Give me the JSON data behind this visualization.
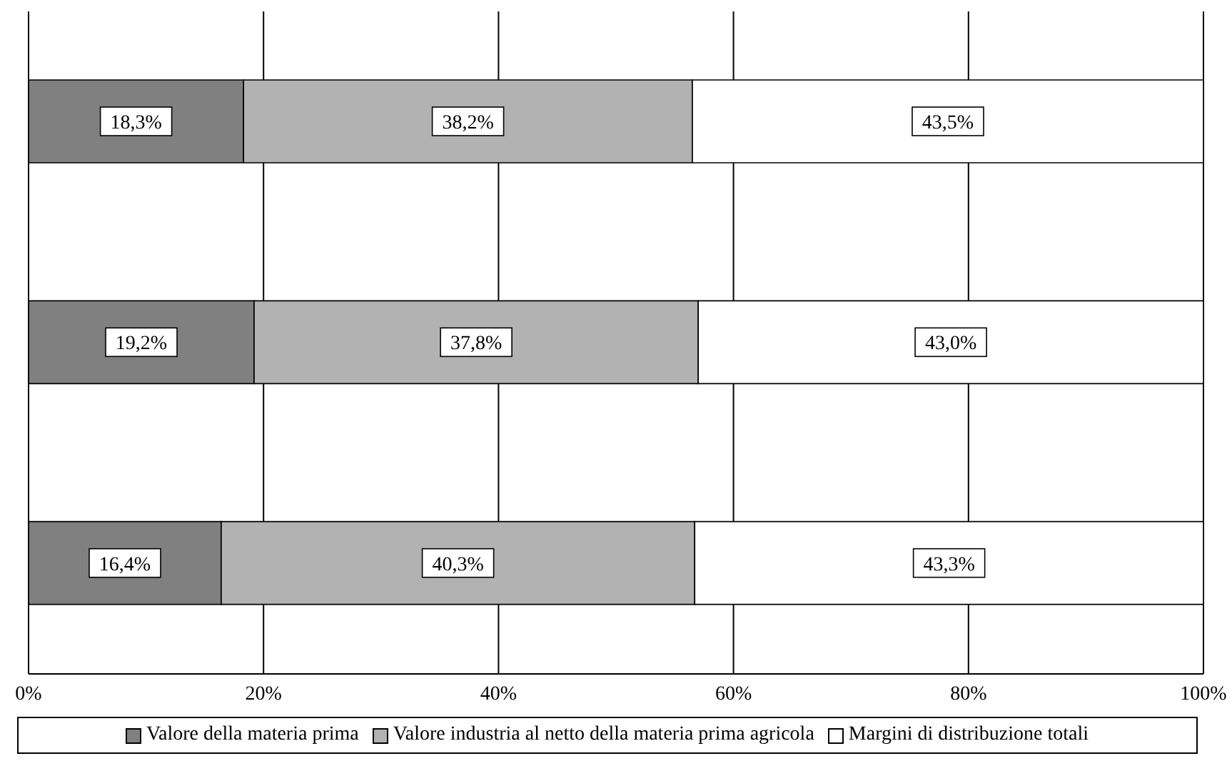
{
  "chart_data": {
    "type": "bar",
    "orientation": "horizontal",
    "stacked": true,
    "categories": [
      null,
      null,
      null
    ],
    "series": [
      {
        "name": "Valore della materia prima",
        "color": "#808080",
        "values": [
          18.3,
          19.2,
          16.4
        ],
        "value_labels": [
          "18,3%",
          "19,2%",
          "16,4%"
        ]
      },
      {
        "name": "Valore industria al netto della materia prima agricola",
        "color": "#b2b2b2",
        "values": [
          38.2,
          37.8,
          40.3
        ],
        "value_labels": [
          "38,2%",
          "37,8%",
          "40,3%"
        ]
      },
      {
        "name": "Margini di distribuzione totali",
        "color": "#ffffff",
        "values": [
          43.5,
          43.0,
          43.3
        ],
        "value_labels": [
          "43,5%",
          "43,0%",
          "43,3%"
        ]
      }
    ],
    "xlim": [
      0,
      100
    ],
    "xticks": [
      {
        "value": 0,
        "label": "0%"
      },
      {
        "value": 20,
        "label": "20%"
      },
      {
        "value": 40,
        "label": "40%"
      },
      {
        "value": 60,
        "label": "60%"
      },
      {
        "value": 80,
        "label": "80%"
      },
      {
        "value": 100,
        "label": "100%"
      }
    ],
    "grid": "x",
    "legend": "bottom",
    "tick_labels": "x"
  }
}
